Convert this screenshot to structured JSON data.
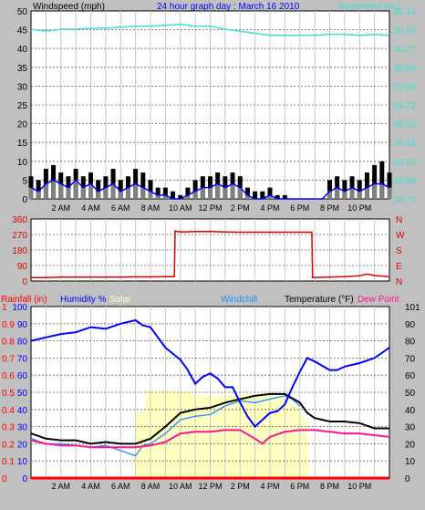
{
  "header": {
    "windspeed_label": "Windspeed (mph)",
    "title": "24 hour graph day : March 16 2010",
    "barometer_label": "Barometer (in.)"
  },
  "colors": {
    "background": "#c0c0c0",
    "plot_bg": "#ffffff",
    "wind_gust": "#000000",
    "wind_avg": "#0000ff",
    "wind_fill": "#808080",
    "barometer": "#40e0d0",
    "direction": "#dd0000",
    "rain": "#ff0000",
    "humidity": "#0000ff",
    "solar": "#ffffc0",
    "windchill": "#1e90ff",
    "temperature": "#000000",
    "dewpoint": "#ff1493",
    "title_blue": "#0000ff",
    "hour_grid": "#c8c8c8"
  },
  "chart_data": [
    {
      "type": "line",
      "name": "windspeed-barometer",
      "x_ticks": [
        "2 AM",
        "4 AM",
        "6 AM",
        "8 AM",
        "10 AM",
        "12 PM",
        "2 PM",
        "4 PM",
        "6 PM",
        "8 PM",
        "10 PM"
      ],
      "hours_range": [
        0,
        24
      ],
      "y_left_ticks": [
        "0",
        "5",
        "10",
        "15",
        "20",
        "25",
        "30",
        "35",
        "40",
        "45",
        "50"
      ],
      "y_left_range": [
        0,
        50
      ],
      "y_right_ticks": [
        "28.79",
        "28.98",
        "29.16",
        "29.35",
        "29.53",
        "29.72",
        "29.90",
        "30.09",
        "30.27",
        "30.46",
        "30.64"
      ],
      "y_right_range": [
        28.79,
        30.64
      ],
      "series": [
        {
          "name": "Windspeed (mph)",
          "x": [
            0,
            0.5,
            1,
            1.5,
            2,
            2.5,
            3,
            3.5,
            4,
            4.5,
            5,
            5.5,
            6,
            6.5,
            7,
            7.5,
            8,
            8.5,
            9,
            9.5,
            10,
            10.5,
            11,
            11.5,
            12,
            12.5,
            13,
            13.5,
            14,
            14.5,
            15,
            15.5,
            16,
            16.5,
            17,
            17.5,
            18,
            18.5,
            19,
            19.5,
            20,
            20.5,
            21,
            21.5,
            22,
            22.5,
            23,
            23.5,
            24
          ],
          "values": [
            3,
            2,
            4,
            5,
            4,
            3,
            5,
            3,
            4,
            2,
            3,
            4,
            2,
            3,
            4,
            3,
            2,
            1,
            1,
            0,
            0,
            1,
            2,
            3,
            3,
            4,
            3,
            4,
            3,
            1,
            0,
            0,
            1,
            0,
            0,
            0,
            0,
            0,
            0,
            0,
            2,
            3,
            2,
            3,
            2,
            3,
            4,
            4,
            3
          ]
        },
        {
          "name": "Wind gust",
          "x": [
            0,
            0.5,
            1,
            1.5,
            2,
            2.5,
            3,
            3.5,
            4,
            4.5,
            5,
            5.5,
            6,
            6.5,
            7,
            7.5,
            8,
            8.5,
            9,
            9.5,
            10,
            10.5,
            11,
            11.5,
            12,
            12.5,
            13,
            13.5,
            14,
            14.5,
            15,
            15.5,
            16,
            16.5,
            17,
            17.5,
            18,
            18.5,
            19,
            19.5,
            20,
            20.5,
            21,
            21.5,
            22,
            22.5,
            23,
            23.5,
            24
          ],
          "values": [
            6,
            5,
            8,
            9,
            7,
            6,
            8,
            6,
            7,
            5,
            6,
            8,
            5,
            6,
            8,
            7,
            5,
            3,
            3,
            2,
            1,
            3,
            5,
            6,
            6,
            7,
            6,
            7,
            6,
            3,
            2,
            2,
            3,
            1,
            1,
            0,
            0,
            0,
            0,
            0,
            5,
            6,
            5,
            6,
            5,
            7,
            9,
            10,
            7
          ]
        },
        {
          "name": "Barometer (in.)",
          "x": [
            0,
            1,
            2,
            3,
            4,
            5,
            6,
            7,
            8,
            9,
            10,
            11,
            12,
            13,
            14,
            15,
            16,
            17,
            18,
            19,
            20,
            21,
            22,
            23,
            24
          ],
          "values": [
            30.46,
            30.44,
            30.46,
            30.46,
            30.47,
            30.47,
            30.48,
            30.49,
            30.49,
            30.5,
            30.51,
            30.49,
            30.49,
            30.46,
            30.44,
            30.42,
            30.4,
            30.4,
            30.4,
            30.4,
            30.41,
            30.41,
            30.4,
            30.41,
            30.4
          ]
        }
      ]
    },
    {
      "type": "line",
      "name": "wind-direction",
      "y_left_ticks": [
        "0",
        "90",
        "180",
        "270",
        "360"
      ],
      "y_left_range": [
        0,
        360
      ],
      "y_right_ticks": [
        "N",
        "E",
        "S",
        "W",
        "N"
      ],
      "series": [
        {
          "name": "Wind direction",
          "x": [
            0,
            1,
            2,
            3,
            4,
            5,
            6,
            7,
            8,
            9,
            9.6,
            9.65,
            10,
            11,
            12,
            13,
            14,
            15,
            16,
            17,
            18,
            18.8,
            18.85,
            20,
            21,
            22,
            22.5,
            23,
            24
          ],
          "values": [
            20,
            20,
            22,
            22,
            22,
            22,
            23,
            24,
            24,
            25,
            25,
            290,
            285,
            287,
            288,
            285,
            283,
            283,
            283,
            283,
            283,
            283,
            20,
            22,
            25,
            30,
            40,
            32,
            25
          ]
        }
      ]
    },
    {
      "type": "line",
      "name": "rain-humidity-temperature",
      "legend": [
        "Rainfall (in)",
        "Humidity %",
        "Solar",
        "Windchill",
        "Temperature (°F)",
        "Dew Point"
      ],
      "y_rain_ticks": [
        "0",
        "0.1",
        "0.2",
        "0.3",
        "0.4",
        "0.5",
        "0.6",
        "0.7",
        "0.8",
        "0.9",
        "1"
      ],
      "y_hum_ticks": [
        "0",
        "10",
        "20",
        "30",
        "40",
        "50",
        "60",
        "70",
        "80",
        "90",
        "100"
      ],
      "y_right_ticks": [
        "0",
        "10",
        "20",
        "30",
        "40",
        "50",
        "60",
        "70",
        "80",
        "90",
        "101"
      ],
      "y_range": [
        0,
        100
      ],
      "series": [
        {
          "name": "Humidity %",
          "x": [
            0,
            1,
            2,
            3,
            4,
            5,
            6,
            7,
            7.5,
            8,
            9,
            10,
            10.5,
            11,
            11.5,
            12,
            12.5,
            13,
            13.5,
            14,
            14.5,
            15,
            15.5,
            16,
            16.5,
            17,
            17.5,
            18,
            18.5,
            19,
            20,
            20.5,
            21,
            22,
            23,
            24
          ],
          "values": [
            80,
            82,
            84,
            85,
            88,
            87,
            90,
            92,
            89,
            88,
            76,
            69,
            63,
            55,
            59,
            61,
            58,
            53,
            53,
            44,
            36,
            30,
            34,
            38,
            39,
            43,
            53,
            62,
            70,
            68,
            63,
            63,
            65,
            67,
            70,
            76
          ]
        },
        {
          "name": "Solar",
          "x": [
            0,
            6.9,
            7.0,
            7.6,
            7.7,
            9,
            10,
            11,
            12,
            13,
            14,
            15,
            16,
            17,
            18,
            18.5,
            18.6,
            24
          ],
          "values": [
            0,
            0,
            39,
            39,
            51,
            51,
            51,
            49,
            48,
            48,
            49,
            49,
            49,
            46,
            40,
            32,
            0,
            0
          ]
        },
        {
          "name": "Windchill",
          "x": [
            0,
            1,
            2,
            3,
            4,
            5,
            6,
            7,
            7.5,
            8,
            9,
            10,
            11,
            12,
            13,
            14,
            15,
            16,
            16.5,
            17,
            17.5,
            18
          ],
          "values": [
            23,
            20,
            20,
            19,
            18,
            19,
            16,
            13,
            19,
            20,
            26,
            34,
            36,
            37,
            42,
            45,
            44,
            46,
            47,
            48,
            46,
            42
          ]
        },
        {
          "name": "Temperature (°F)",
          "x": [
            0,
            1,
            2,
            3,
            4,
            5,
            6,
            7,
            8,
            9,
            10,
            11,
            12,
            13,
            14,
            15,
            16,
            17,
            18,
            18.5,
            19,
            20,
            21,
            22,
            23,
            24
          ],
          "values": [
            26,
            23,
            22,
            22,
            20,
            21,
            20,
            20,
            23,
            30,
            38,
            40,
            41,
            44,
            46,
            48,
            49,
            49,
            44,
            38,
            35,
            33,
            33,
            32,
            29,
            29
          ]
        },
        {
          "name": "Dew Point",
          "x": [
            0,
            1,
            2,
            3,
            4,
            5,
            6,
            7,
            8,
            9,
            10,
            11,
            12,
            13,
            14,
            15,
            15.5,
            16,
            17,
            18,
            19,
            20,
            21,
            22,
            23,
            24
          ],
          "values": [
            22,
            20,
            19,
            19,
            18,
            18,
            18,
            18,
            19,
            21,
            26,
            27,
            27,
            28,
            28,
            23,
            20,
            24,
            27,
            28,
            28,
            27,
            26,
            26,
            25,
            24
          ]
        },
        {
          "name": "Rainfall (in)",
          "x": [
            0,
            24
          ],
          "values": [
            0,
            0
          ]
        }
      ]
    }
  ]
}
